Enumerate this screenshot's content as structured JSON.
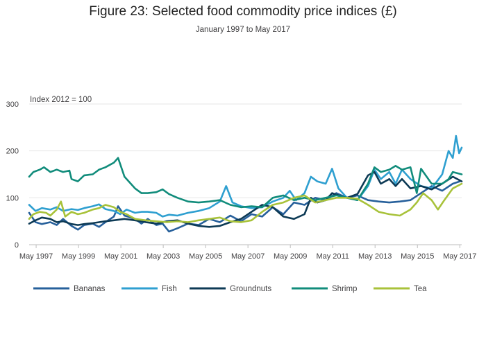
{
  "header": {
    "title": "Figure 23: Selected food commodity price indices (£)",
    "subtitle": "January 1997 to May 2017"
  },
  "colors": {
    "Bananas": "#27609b",
    "Fish": "#2e9fd0",
    "Groundnuts": "#0d3a55",
    "Shrimp": "#118c7b",
    "Tea": "#a8c23a"
  },
  "chart_data": {
    "type": "line",
    "title": "Figure 23: Selected food commodity price indices (£)",
    "subtitle": "January 1997 to May 2017",
    "ylabel": "Index 2012 = 100",
    "xlabel": "",
    "x_start": "Jan 1997",
    "x_end": "May 2017",
    "x_unit": "years (decimal)",
    "xlim": [
      1997.0,
      2017.42
    ],
    "ylim": [
      0,
      300
    ],
    "yticks": [
      0,
      100,
      200,
      300
    ],
    "xticks": [
      {
        "value": 1997.33,
        "label": "May 1997"
      },
      {
        "value": 1999.33,
        "label": "May 1999"
      },
      {
        "value": 2001.33,
        "label": "May 2001"
      },
      {
        "value": 2003.33,
        "label": "May 2003"
      },
      {
        "value": 2005.33,
        "label": "May 2005"
      },
      {
        "value": 2007.33,
        "label": "May 2007"
      },
      {
        "value": 2009.33,
        "label": "May 2009"
      },
      {
        "value": 2011.33,
        "label": "May 2011"
      },
      {
        "value": 2013.33,
        "label": "May 2013"
      },
      {
        "value": 2015.33,
        "label": "May 2015"
      },
      {
        "value": 2017.33,
        "label": "May 2017"
      }
    ],
    "grid": "horizontal",
    "legend": "bottom",
    "series": [
      {
        "name": "Bananas",
        "points": [
          [
            1997.0,
            68
          ],
          [
            1997.3,
            48
          ],
          [
            1997.6,
            44
          ],
          [
            1998.0,
            48
          ],
          [
            1998.3,
            42
          ],
          [
            1998.6,
            55
          ],
          [
            1999.0,
            40
          ],
          [
            1999.3,
            32
          ],
          [
            1999.6,
            42
          ],
          [
            2000.0,
            45
          ],
          [
            2000.3,
            38
          ],
          [
            2000.6,
            48
          ],
          [
            2001.0,
            60
          ],
          [
            2001.2,
            82
          ],
          [
            2001.5,
            62
          ],
          [
            2002.0,
            55
          ],
          [
            2002.3,
            45
          ],
          [
            2002.6,
            55
          ],
          [
            2003.0,
            42
          ],
          [
            2003.3,
            45
          ],
          [
            2003.6,
            28
          ],
          [
            2004.0,
            35
          ],
          [
            2004.5,
            45
          ],
          [
            2005.0,
            42
          ],
          [
            2005.5,
            55
          ],
          [
            2006.0,
            48
          ],
          [
            2006.5,
            62
          ],
          [
            2007.0,
            50
          ],
          [
            2007.5,
            65
          ],
          [
            2008.0,
            60
          ],
          [
            2008.5,
            80
          ],
          [
            2009.0,
            65
          ],
          [
            2009.5,
            90
          ],
          [
            2010.0,
            85
          ],
          [
            2010.5,
            100
          ],
          [
            2011.0,
            95
          ],
          [
            2011.5,
            110
          ],
          [
            2012.0,
            100
          ],
          [
            2012.5,
            105
          ],
          [
            2013.0,
            95
          ],
          [
            2013.5,
            92
          ],
          [
            2014.0,
            90
          ],
          [
            2014.5,
            92
          ],
          [
            2015.0,
            95
          ],
          [
            2015.5,
            110
          ],
          [
            2016.0,
            125
          ],
          [
            2016.5,
            115
          ],
          [
            2017.0,
            130
          ],
          [
            2017.33,
            135
          ]
        ]
      },
      {
        "name": "Fish",
        "points": [
          [
            1997.0,
            85
          ],
          [
            1997.3,
            72
          ],
          [
            1997.6,
            78
          ],
          [
            1998.0,
            75
          ],
          [
            1998.3,
            80
          ],
          [
            1998.6,
            72
          ],
          [
            1999.0,
            76
          ],
          [
            1999.3,
            74
          ],
          [
            1999.6,
            78
          ],
          [
            2000.0,
            82
          ],
          [
            2000.3,
            86
          ],
          [
            2000.6,
            76
          ],
          [
            2001.0,
            72
          ],
          [
            2001.3,
            65
          ],
          [
            2001.6,
            75
          ],
          [
            2002.0,
            68
          ],
          [
            2002.3,
            70
          ],
          [
            2002.6,
            70
          ],
          [
            2003.0,
            68
          ],
          [
            2003.3,
            60
          ],
          [
            2003.6,
            64
          ],
          [
            2004.0,
            62
          ],
          [
            2004.5,
            68
          ],
          [
            2005.0,
            72
          ],
          [
            2005.5,
            78
          ],
          [
            2006.0,
            92
          ],
          [
            2006.3,
            125
          ],
          [
            2006.6,
            90
          ],
          [
            2007.0,
            82
          ],
          [
            2007.5,
            78
          ],
          [
            2008.0,
            80
          ],
          [
            2008.5,
            92
          ],
          [
            2009.0,
            100
          ],
          [
            2009.3,
            115
          ],
          [
            2009.6,
            95
          ],
          [
            2010.0,
            110
          ],
          [
            2010.3,
            145
          ],
          [
            2010.6,
            135
          ],
          [
            2011.0,
            130
          ],
          [
            2011.3,
            162
          ],
          [
            2011.6,
            120
          ],
          [
            2012.0,
            100
          ],
          [
            2012.5,
            95
          ],
          [
            2013.0,
            125
          ],
          [
            2013.3,
            160
          ],
          [
            2013.6,
            140
          ],
          [
            2014.0,
            155
          ],
          [
            2014.3,
            130
          ],
          [
            2014.6,
            160
          ],
          [
            2015.0,
            140
          ],
          [
            2015.5,
            125
          ],
          [
            2016.0,
            120
          ],
          [
            2016.5,
            150
          ],
          [
            2016.8,
            200
          ],
          [
            2017.0,
            185
          ],
          [
            2017.15,
            232
          ],
          [
            2017.3,
            195
          ],
          [
            2017.42,
            207
          ]
        ]
      },
      {
        "name": "Groundnuts",
        "points": [
          [
            1997.0,
            45
          ],
          [
            1997.3,
            52
          ],
          [
            1997.6,
            58
          ],
          [
            1998.0,
            55
          ],
          [
            1998.3,
            48
          ],
          [
            1998.6,
            50
          ],
          [
            1999.0,
            44
          ],
          [
            1999.3,
            42
          ],
          [
            1999.6,
            44
          ],
          [
            2000.0,
            46
          ],
          [
            2000.3,
            48
          ],
          [
            2000.6,
            50
          ],
          [
            2001.0,
            52
          ],
          [
            2001.5,
            55
          ],
          [
            2002.0,
            52
          ],
          [
            2002.5,
            48
          ],
          [
            2003.0,
            45
          ],
          [
            2003.5,
            50
          ],
          [
            2004.0,
            52
          ],
          [
            2004.5,
            45
          ],
          [
            2005.0,
            40
          ],
          [
            2005.5,
            38
          ],
          [
            2006.0,
            40
          ],
          [
            2006.5,
            48
          ],
          [
            2007.0,
            55
          ],
          [
            2007.5,
            70
          ],
          [
            2008.0,
            85
          ],
          [
            2008.5,
            80
          ],
          [
            2009.0,
            60
          ],
          [
            2009.5,
            55
          ],
          [
            2010.0,
            65
          ],
          [
            2010.3,
            100
          ],
          [
            2010.6,
            90
          ],
          [
            2011.0,
            95
          ],
          [
            2011.3,
            110
          ],
          [
            2011.6,
            105
          ],
          [
            2012.0,
            100
          ],
          [
            2012.5,
            108
          ],
          [
            2013.0,
            148
          ],
          [
            2013.3,
            155
          ],
          [
            2013.6,
            130
          ],
          [
            2014.0,
            140
          ],
          [
            2014.3,
            125
          ],
          [
            2014.6,
            140
          ],
          [
            2015.0,
            120
          ],
          [
            2015.5,
            125
          ],
          [
            2016.0,
            118
          ],
          [
            2016.5,
            130
          ],
          [
            2017.0,
            145
          ],
          [
            2017.42,
            135
          ]
        ]
      },
      {
        "name": "Shrimp",
        "points": [
          [
            1997.0,
            145
          ],
          [
            1997.2,
            155
          ],
          [
            1997.5,
            160
          ],
          [
            1997.7,
            165
          ],
          [
            1998.0,
            155
          ],
          [
            1998.3,
            160
          ],
          [
            1998.6,
            155
          ],
          [
            1998.9,
            158
          ],
          [
            1999.0,
            140
          ],
          [
            1999.3,
            135
          ],
          [
            1999.6,
            148
          ],
          [
            2000.0,
            150
          ],
          [
            2000.3,
            160
          ],
          [
            2000.6,
            165
          ],
          [
            2001.0,
            175
          ],
          [
            2001.2,
            185
          ],
          [
            2001.5,
            145
          ],
          [
            2001.8,
            130
          ],
          [
            2002.0,
            120
          ],
          [
            2002.3,
            110
          ],
          [
            2002.6,
            110
          ],
          [
            2003.0,
            112
          ],
          [
            2003.3,
            118
          ],
          [
            2003.6,
            108
          ],
          [
            2004.0,
            100
          ],
          [
            2004.5,
            92
          ],
          [
            2005.0,
            90
          ],
          [
            2005.5,
            92
          ],
          [
            2006.0,
            95
          ],
          [
            2006.5,
            85
          ],
          [
            2007.0,
            80
          ],
          [
            2007.5,
            82
          ],
          [
            2008.0,
            80
          ],
          [
            2008.5,
            100
          ],
          [
            2009.0,
            105
          ],
          [
            2009.5,
            95
          ],
          [
            2010.0,
            100
          ],
          [
            2010.5,
            95
          ],
          [
            2011.0,
            100
          ],
          [
            2011.5,
            105
          ],
          [
            2012.0,
            100
          ],
          [
            2012.5,
            95
          ],
          [
            2013.0,
            130
          ],
          [
            2013.3,
            165
          ],
          [
            2013.6,
            155
          ],
          [
            2014.0,
            160
          ],
          [
            2014.3,
            168
          ],
          [
            2014.6,
            160
          ],
          [
            2015.0,
            165
          ],
          [
            2015.3,
            110
          ],
          [
            2015.5,
            162
          ],
          [
            2016.0,
            130
          ],
          [
            2016.5,
            130
          ],
          [
            2016.8,
            140
          ],
          [
            2017.0,
            155
          ],
          [
            2017.42,
            150
          ]
        ]
      },
      {
        "name": "Tea",
        "points": [
          [
            1997.0,
            55
          ],
          [
            1997.2,
            65
          ],
          [
            1997.5,
            70
          ],
          [
            1997.8,
            68
          ],
          [
            1998.0,
            62
          ],
          [
            1998.3,
            75
          ],
          [
            1998.5,
            92
          ],
          [
            1998.7,
            60
          ],
          [
            1999.0,
            70
          ],
          [
            1999.3,
            65
          ],
          [
            1999.6,
            68
          ],
          [
            2000.0,
            75
          ],
          [
            2000.3,
            78
          ],
          [
            2000.6,
            85
          ],
          [
            2001.0,
            80
          ],
          [
            2001.3,
            70
          ],
          [
            2001.6,
            65
          ],
          [
            2002.0,
            55
          ],
          [
            2002.5,
            52
          ],
          [
            2003.0,
            50
          ],
          [
            2003.5,
            48
          ],
          [
            2004.0,
            50
          ],
          [
            2004.5,
            48
          ],
          [
            2005.0,
            52
          ],
          [
            2005.5,
            55
          ],
          [
            2006.0,
            58
          ],
          [
            2006.5,
            50
          ],
          [
            2007.0,
            48
          ],
          [
            2007.5,
            52
          ],
          [
            2008.0,
            70
          ],
          [
            2008.5,
            85
          ],
          [
            2009.0,
            90
          ],
          [
            2009.5,
            100
          ],
          [
            2010.0,
            105
          ],
          [
            2010.5,
            90
          ],
          [
            2011.0,
            95
          ],
          [
            2011.5,
            100
          ],
          [
            2012.0,
            100
          ],
          [
            2012.5,
            98
          ],
          [
            2013.0,
            85
          ],
          [
            2013.5,
            70
          ],
          [
            2014.0,
            65
          ],
          [
            2014.5,
            62
          ],
          [
            2015.0,
            75
          ],
          [
            2015.3,
            90
          ],
          [
            2015.6,
            110
          ],
          [
            2016.0,
            95
          ],
          [
            2016.3,
            75
          ],
          [
            2016.6,
            95
          ],
          [
            2017.0,
            120
          ],
          [
            2017.42,
            130
          ]
        ]
      }
    ]
  }
}
